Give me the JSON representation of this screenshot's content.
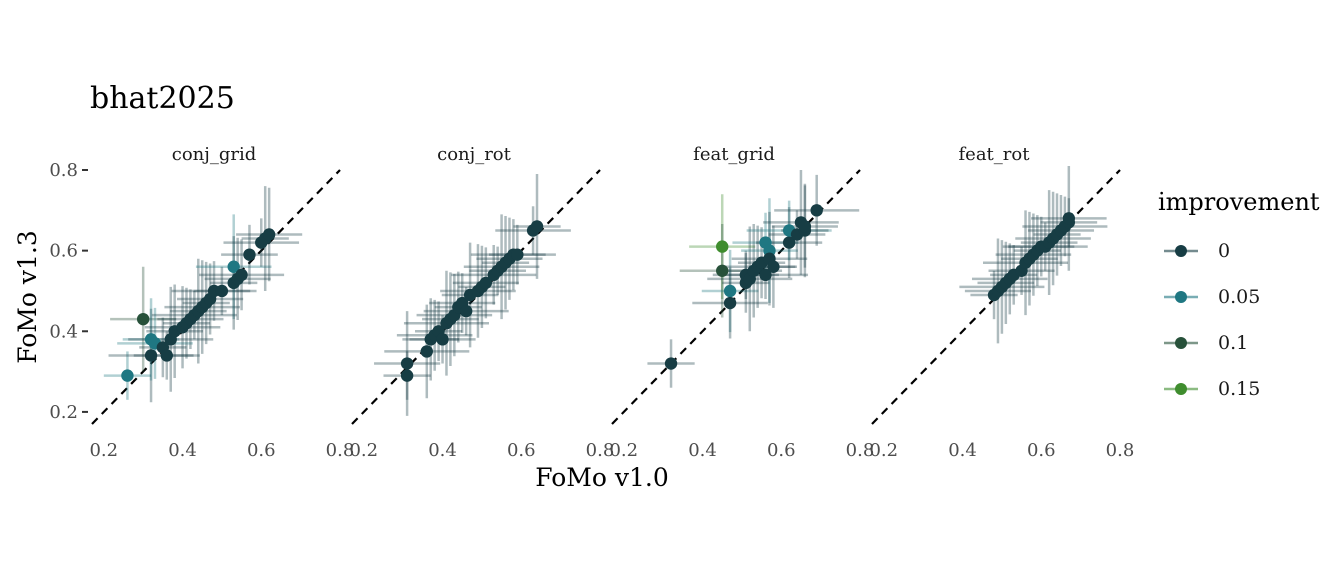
{
  "chart_data": {
    "type": "scatter",
    "title": "bhat2025",
    "xlabel": "FoMo v1.0",
    "ylabel": "FoMo v1.3",
    "xlim": [
      0.17,
      0.8
    ],
    "ylim": [
      0.17,
      0.8
    ],
    "x_ticks": [
      "0.2",
      "0.4",
      "0.6",
      "0.8"
    ],
    "y_ticks": [
      "0.2",
      "0.4",
      "0.6",
      "0.8"
    ],
    "reference_line": "y = x (dashed)",
    "grid": false,
    "legend_position": "right",
    "legend": {
      "title": "improvement",
      "items": [
        {
          "label": "0",
          "color": "#173d44"
        },
        {
          "label": "0.05",
          "color": "#1f7782"
        },
        {
          "label": "0.1",
          "color": "#27513a"
        },
        {
          "label": "0.15",
          "color": "#3f8d2e"
        }
      ]
    },
    "panels": [
      {
        "name": "conj_grid",
        "points": [
          {
            "x": 0.26,
            "y": 0.29,
            "imp": 0.05
          },
          {
            "x": 0.3,
            "y": 0.43,
            "imp": 0.1
          },
          {
            "x": 0.32,
            "y": 0.34,
            "imp": 0
          },
          {
            "x": 0.32,
            "y": 0.38,
            "imp": 0.05
          },
          {
            "x": 0.33,
            "y": 0.37,
            "imp": 0.05
          },
          {
            "x": 0.35,
            "y": 0.36,
            "imp": 0
          },
          {
            "x": 0.36,
            "y": 0.34,
            "imp": 0
          },
          {
            "x": 0.37,
            "y": 0.38,
            "imp": 0
          },
          {
            "x": 0.38,
            "y": 0.4,
            "imp": 0
          },
          {
            "x": 0.4,
            "y": 0.41,
            "imp": 0
          },
          {
            "x": 0.41,
            "y": 0.42,
            "imp": 0
          },
          {
            "x": 0.42,
            "y": 0.43,
            "imp": 0
          },
          {
            "x": 0.43,
            "y": 0.44,
            "imp": 0
          },
          {
            "x": 0.44,
            "y": 0.45,
            "imp": 0
          },
          {
            "x": 0.45,
            "y": 0.46,
            "imp": 0
          },
          {
            "x": 0.46,
            "y": 0.47,
            "imp": 0
          },
          {
            "x": 0.47,
            "y": 0.48,
            "imp": 0
          },
          {
            "x": 0.48,
            "y": 0.5,
            "imp": 0
          },
          {
            "x": 0.5,
            "y": 0.5,
            "imp": 0
          },
          {
            "x": 0.53,
            "y": 0.56,
            "imp": 0.05
          },
          {
            "x": 0.53,
            "y": 0.52,
            "imp": 0
          },
          {
            "x": 0.54,
            "y": 0.53,
            "imp": 0
          },
          {
            "x": 0.55,
            "y": 0.54,
            "imp": 0
          },
          {
            "x": 0.57,
            "y": 0.59,
            "imp": 0
          },
          {
            "x": 0.6,
            "y": 0.62,
            "imp": 0
          },
          {
            "x": 0.61,
            "y": 0.63,
            "imp": 0
          },
          {
            "x": 0.62,
            "y": 0.64,
            "imp": 0
          }
        ]
      },
      {
        "name": "conj_rot",
        "points": [
          {
            "x": 0.31,
            "y": 0.29,
            "imp": 0
          },
          {
            "x": 0.31,
            "y": 0.32,
            "imp": 0
          },
          {
            "x": 0.36,
            "y": 0.35,
            "imp": 0
          },
          {
            "x": 0.37,
            "y": 0.38,
            "imp": 0
          },
          {
            "x": 0.38,
            "y": 0.39,
            "imp": 0
          },
          {
            "x": 0.39,
            "y": 0.4,
            "imp": 0
          },
          {
            "x": 0.4,
            "y": 0.38,
            "imp": 0
          },
          {
            "x": 0.41,
            "y": 0.42,
            "imp": 0
          },
          {
            "x": 0.42,
            "y": 0.43,
            "imp": 0
          },
          {
            "x": 0.43,
            "y": 0.44,
            "imp": 0
          },
          {
            "x": 0.44,
            "y": 0.46,
            "imp": 0
          },
          {
            "x": 0.45,
            "y": 0.47,
            "imp": 0
          },
          {
            "x": 0.46,
            "y": 0.45,
            "imp": 0
          },
          {
            "x": 0.47,
            "y": 0.49,
            "imp": 0
          },
          {
            "x": 0.49,
            "y": 0.5,
            "imp": 0
          },
          {
            "x": 0.5,
            "y": 0.51,
            "imp": 0
          },
          {
            "x": 0.51,
            "y": 0.52,
            "imp": 0
          },
          {
            "x": 0.53,
            "y": 0.54,
            "imp": 0
          },
          {
            "x": 0.54,
            "y": 0.55,
            "imp": 0
          },
          {
            "x": 0.55,
            "y": 0.56,
            "imp": 0
          },
          {
            "x": 0.56,
            "y": 0.57,
            "imp": 0
          },
          {
            "x": 0.57,
            "y": 0.58,
            "imp": 0
          },
          {
            "x": 0.58,
            "y": 0.59,
            "imp": 0
          },
          {
            "x": 0.59,
            "y": 0.59,
            "imp": 0
          },
          {
            "x": 0.63,
            "y": 0.65,
            "imp": 0
          },
          {
            "x": 0.64,
            "y": 0.66,
            "imp": 0
          }
        ]
      },
      {
        "name": "feat_grid",
        "points": [
          {
            "x": 0.32,
            "y": 0.32,
            "imp": 0
          },
          {
            "x": 0.45,
            "y": 0.61,
            "imp": 0.15
          },
          {
            "x": 0.45,
            "y": 0.55,
            "imp": 0.1
          },
          {
            "x": 0.47,
            "y": 0.5,
            "imp": 0.05
          },
          {
            "x": 0.47,
            "y": 0.47,
            "imp": 0
          },
          {
            "x": 0.51,
            "y": 0.52,
            "imp": 0
          },
          {
            "x": 0.51,
            "y": 0.54,
            "imp": 0
          },
          {
            "x": 0.52,
            "y": 0.53,
            "imp": 0
          },
          {
            "x": 0.53,
            "y": 0.55,
            "imp": 0
          },
          {
            "x": 0.54,
            "y": 0.56,
            "imp": 0
          },
          {
            "x": 0.55,
            "y": 0.57,
            "imp": 0
          },
          {
            "x": 0.56,
            "y": 0.62,
            "imp": 0.05
          },
          {
            "x": 0.56,
            "y": 0.54,
            "imp": 0
          },
          {
            "x": 0.57,
            "y": 0.6,
            "imp": 0.05
          },
          {
            "x": 0.57,
            "y": 0.58,
            "imp": 0
          },
          {
            "x": 0.58,
            "y": 0.56,
            "imp": 0
          },
          {
            "x": 0.62,
            "y": 0.62,
            "imp": 0
          },
          {
            "x": 0.62,
            "y": 0.65,
            "imp": 0.05
          },
          {
            "x": 0.64,
            "y": 0.64,
            "imp": 0
          },
          {
            "x": 0.65,
            "y": 0.67,
            "imp": 0
          },
          {
            "x": 0.66,
            "y": 0.65,
            "imp": 0
          },
          {
            "x": 0.66,
            "y": 0.66,
            "imp": 0
          },
          {
            "x": 0.69,
            "y": 0.7,
            "imp": 0
          }
        ]
      },
      {
        "name": "feat_rot",
        "points": [
          {
            "x": 0.48,
            "y": 0.49,
            "imp": 0
          },
          {
            "x": 0.49,
            "y": 0.5,
            "imp": 0
          },
          {
            "x": 0.5,
            "y": 0.51,
            "imp": 0
          },
          {
            "x": 0.51,
            "y": 0.52,
            "imp": 0
          },
          {
            "x": 0.52,
            "y": 0.53,
            "imp": 0
          },
          {
            "x": 0.53,
            "y": 0.54,
            "imp": 0
          },
          {
            "x": 0.55,
            "y": 0.55,
            "imp": 0
          },
          {
            "x": 0.56,
            "y": 0.57,
            "imp": 0
          },
          {
            "x": 0.57,
            "y": 0.58,
            "imp": 0
          },
          {
            "x": 0.58,
            "y": 0.59,
            "imp": 0
          },
          {
            "x": 0.59,
            "y": 0.6,
            "imp": 0
          },
          {
            "x": 0.6,
            "y": 0.61,
            "imp": 0
          },
          {
            "x": 0.61,
            "y": 0.61,
            "imp": 0
          },
          {
            "x": 0.62,
            "y": 0.62,
            "imp": 0
          },
          {
            "x": 0.63,
            "y": 0.63,
            "imp": 0
          },
          {
            "x": 0.64,
            "y": 0.64,
            "imp": 0
          },
          {
            "x": 0.65,
            "y": 0.65,
            "imp": 0
          },
          {
            "x": 0.66,
            "y": 0.66,
            "imp": 0
          },
          {
            "x": 0.67,
            "y": 0.67,
            "imp": 0
          },
          {
            "x": 0.67,
            "y": 0.68,
            "imp": 0
          }
        ]
      }
    ]
  }
}
